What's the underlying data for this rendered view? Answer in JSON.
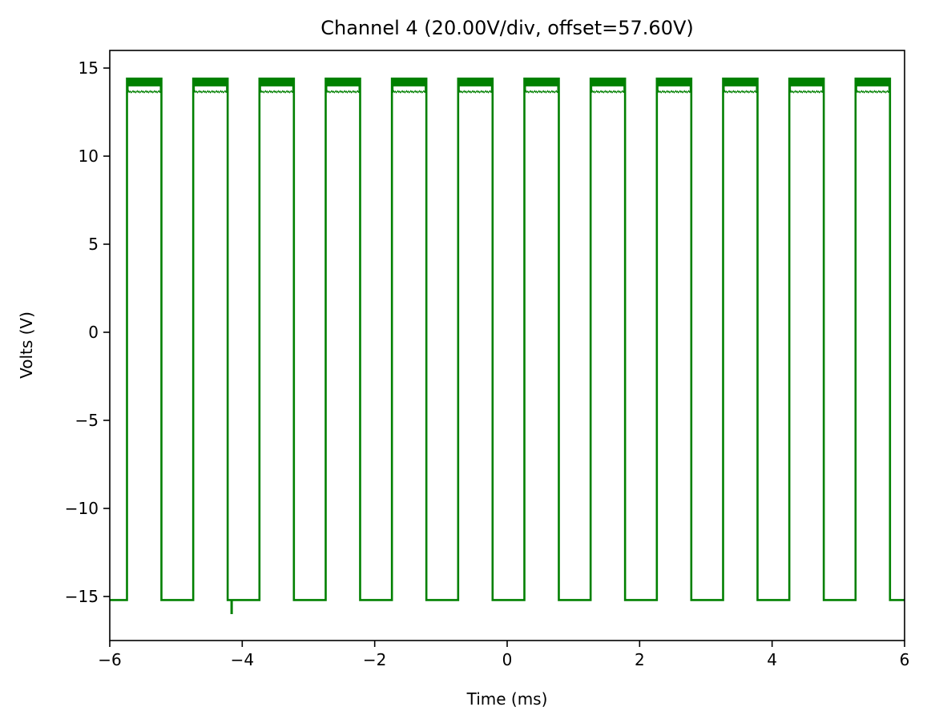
{
  "chart_data": {
    "type": "line",
    "title": "Channel 4 (20.00V/div, offset=57.60V)",
    "xlabel": "Time (ms)",
    "ylabel": "Volts (V)",
    "xlim": [
      -6,
      6
    ],
    "ylim": [
      -17.5,
      16
    ],
    "xticks": [
      -6,
      -4,
      -2,
      0,
      2,
      4,
      6
    ],
    "yticks": [
      -15,
      -10,
      -5,
      0,
      5,
      10,
      15
    ],
    "xtick_labels": [
      "−6",
      "−4",
      "−2",
      "0",
      "2",
      "4",
      "6"
    ],
    "ytick_labels": [
      "−15",
      "−10",
      "−5",
      "0",
      "5",
      "10",
      "15"
    ],
    "grid": false,
    "legend": "none",
    "line_color": "#008000",
    "series": [
      {
        "waveform": "square",
        "period_ms": 1.0,
        "duty_cycle": 0.52,
        "rise_times_ms": [
          -5.74,
          -4.74,
          -3.74,
          -2.74,
          -1.74,
          -0.74,
          0.26,
          1.26,
          2.26,
          3.26,
          4.26,
          5.26
        ],
        "fall_times_ms": [
          -5.22,
          -4.22,
          -3.22,
          -2.22,
          -1.22,
          -0.22,
          0.78,
          1.78,
          2.78,
          3.78,
          4.78,
          5.78
        ],
        "low_level_V": -15.2,
        "high_level_V": 14.0,
        "high_noise_band_V": [
          13.6,
          14.4
        ],
        "glitches": [
          {
            "t_ms": -4.16,
            "min_V": -16.0
          }
        ]
      }
    ]
  }
}
